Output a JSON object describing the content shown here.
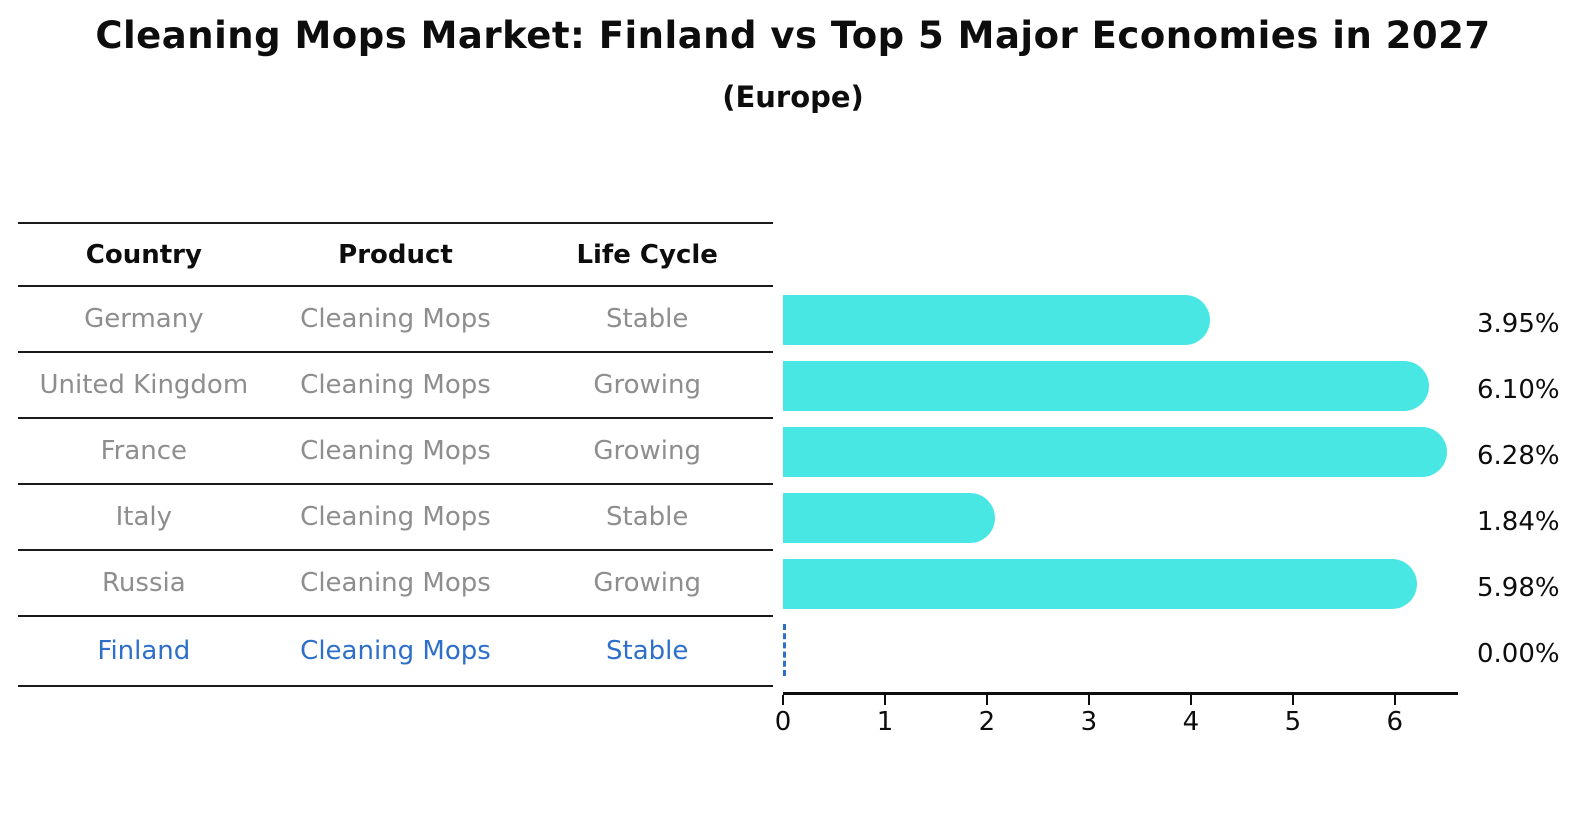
{
  "title": "Cleaning Mops Market: Finland vs Top 5 Major Economies in 2027",
  "subtitle": "(Europe)",
  "table": {
    "columns": [
      "Country",
      "Product",
      "Life Cycle"
    ]
  },
  "chart_data": {
    "type": "bar",
    "orientation": "horizontal",
    "title": "Cleaning Mops Market: Finland vs Top 5 Major Economies in 2027",
    "subtitle": "(Europe)",
    "xlabel": "",
    "ylabel": "",
    "xlim": [
      0,
      6.6
    ],
    "x_ticks": [
      0,
      1,
      2,
      3,
      4,
      5,
      6
    ],
    "grid": false,
    "legend": false,
    "bar_color": "#49e7e4",
    "highlight_color": "#2e70c9",
    "categories": [
      "Germany",
      "United Kingdom",
      "France",
      "Italy",
      "Russia",
      "Finland"
    ],
    "values": [
      3.95,
      6.1,
      6.28,
      1.84,
      5.98,
      0.0
    ],
    "value_labels": [
      "3.95%",
      "6.10%",
      "6.28%",
      "1.84%",
      "5.98%",
      "0.00%"
    ],
    "rows": [
      {
        "country": "Germany",
        "product": "Cleaning Mops",
        "life_cycle": "Stable",
        "value": 3.95,
        "label": "3.95%",
        "highlight": false
      },
      {
        "country": "United Kingdom",
        "product": "Cleaning Mops",
        "life_cycle": "Growing",
        "value": 6.1,
        "label": "6.10%",
        "highlight": false
      },
      {
        "country": "France",
        "product": "Cleaning Mops",
        "life_cycle": "Growing",
        "value": 6.28,
        "label": "6.28%",
        "highlight": false
      },
      {
        "country": "Italy",
        "product": "Cleaning Mops",
        "life_cycle": "Stable",
        "value": 1.84,
        "label": "1.84%",
        "highlight": false
      },
      {
        "country": "Russia",
        "product": "Cleaning Mops",
        "life_cycle": "Growing",
        "value": 5.98,
        "label": "5.98%",
        "highlight": false
      },
      {
        "country": "Finland",
        "product": "Cleaning Mops",
        "life_cycle": "Stable",
        "value": 0.0,
        "label": "0.00%",
        "highlight": true
      }
    ]
  }
}
